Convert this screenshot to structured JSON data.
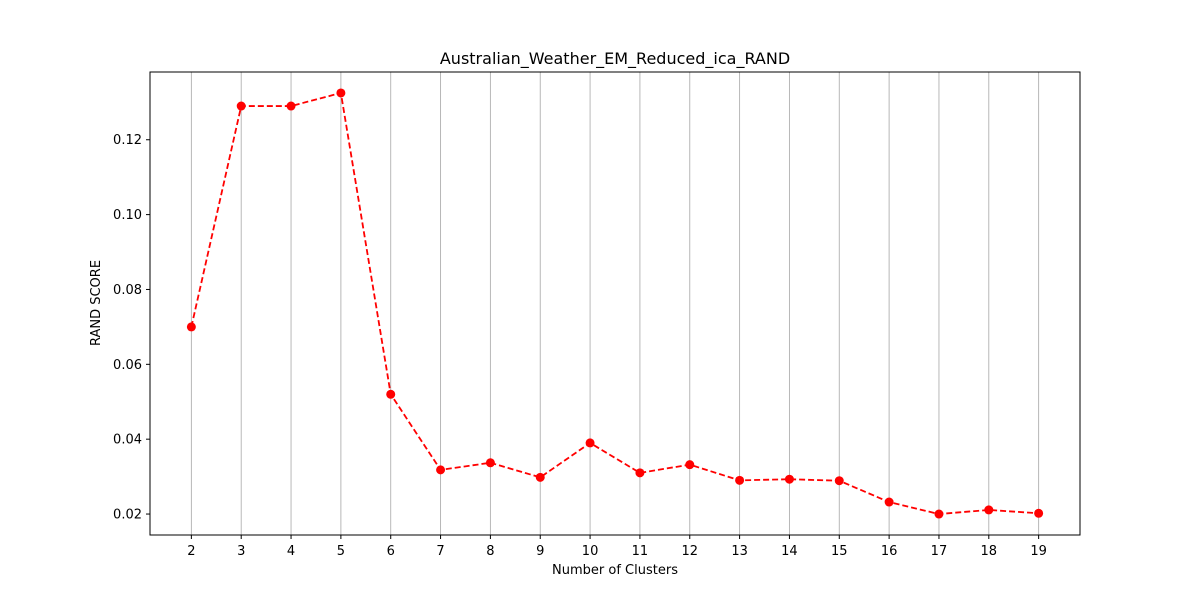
{
  "chart_data": {
    "type": "line",
    "title": "Australian_Weather_EM_Reduced_ica_RAND",
    "xlabel": "Number of Clusters",
    "ylabel": "RAND SCORE",
    "x": [
      2,
      3,
      4,
      5,
      6,
      7,
      8,
      9,
      10,
      11,
      12,
      13,
      14,
      15,
      16,
      17,
      18,
      19
    ],
    "series": [
      {
        "values": [
          0.07,
          0.129,
          0.129,
          0.1325,
          0.052,
          0.0318,
          0.0337,
          0.0298,
          0.039,
          0.031,
          0.0332,
          0.029,
          0.0293,
          0.0289,
          0.0232,
          0.02,
          0.0211,
          0.0202
        ],
        "color": "#ff0000",
        "line_style": "dashed",
        "marker": "circle"
      }
    ],
    "xlim": [
      1.17,
      19.83
    ],
    "ylim": [
      0.0144,
      0.1381
    ],
    "yticks": [
      0.02,
      0.04,
      0.06,
      0.08,
      0.1,
      0.12
    ],
    "ytick_labels": [
      "0.02",
      "0.04",
      "0.06",
      "0.08",
      "0.10",
      "0.12"
    ],
    "grid": "vertical"
  }
}
